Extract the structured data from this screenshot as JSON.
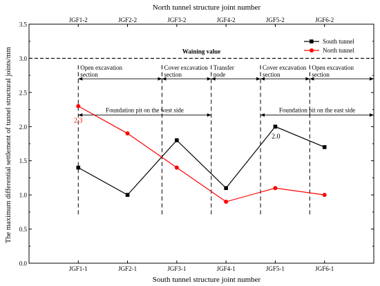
{
  "chart_data": {
    "type": "line",
    "title_top": "North tunnel structure joint number",
    "xlabel": "South tunnel structure joint number",
    "ylabel": "The maximum differential settlement of tunnel structural joints/mm",
    "bottom_categories": [
      "JGF1-1",
      "JGF2-1",
      "JGF3-1",
      "JGF4-1",
      "JGF5-1",
      "JGF6-1"
    ],
    "top_categories": [
      "JGF1-2",
      "JGF2-2",
      "JGF3-2",
      "JGF4-2",
      "JGF5-2",
      "JGF6-2"
    ],
    "ylim": [
      0,
      3.5
    ],
    "yticks": [
      "0.0",
      "0.5",
      "1.0",
      "1.5",
      "2.0",
      "2.5",
      "3.0",
      "3.5"
    ],
    "grid": false,
    "legend_position": "top-right",
    "series": [
      {
        "name": "South tunnel",
        "color": "#000000",
        "marker": "square",
        "values": [
          1.4,
          1.0,
          1.8,
          1.1,
          2.0,
          1.7
        ]
      },
      {
        "name": "North tunnel",
        "color": "#ff0000",
        "marker": "circle",
        "values": [
          2.3,
          1.9,
          1.4,
          0.9,
          1.1,
          1.0
        ]
      }
    ],
    "warning_line": {
      "value": 3.0,
      "label": "Waining value"
    },
    "sections": [
      {
        "label": "Open excavation section",
        "from": 1,
        "to": 2.7
      },
      {
        "label": "Cover excavation section",
        "from": 2.7,
        "to": 3.7
      },
      {
        "label": "Transfer node",
        "from": 3.7,
        "to": 4.7
      },
      {
        "label": "Cover excavation section",
        "from": 4.7,
        "to": 5.7
      },
      {
        "label": "Open excavation section",
        "from": 5.7,
        "to": 7
      }
    ],
    "foundation_pits": [
      {
        "label": "Foundation pit on the west side",
        "from": 1,
        "to": 3.7
      },
      {
        "label": "Foundation pit on the east side",
        "from": 4.7,
        "to": 7
      }
    ],
    "annotations": [
      {
        "text": "2.3",
        "color": "#ff0000",
        "series": "North tunnel",
        "index": 0
      },
      {
        "text": "2.0",
        "color": "#000000",
        "series": "South tunnel",
        "index": 4
      }
    ]
  }
}
